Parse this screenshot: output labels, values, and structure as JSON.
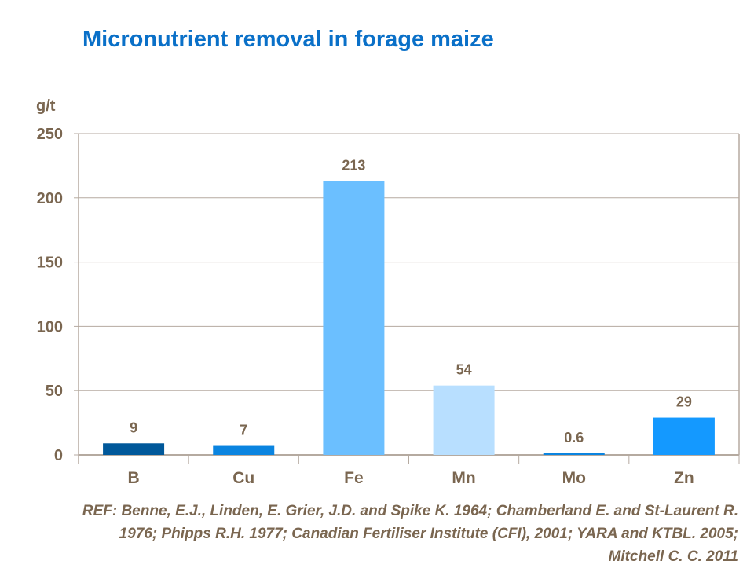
{
  "chart_data": {
    "type": "bar",
    "title": "Micronutrient removal in forage maize",
    "ylabel": "g/t",
    "xlabel": "",
    "categories": [
      "B",
      "Cu",
      "Fe",
      "Mn",
      "Mo",
      "Zn"
    ],
    "values": [
      9,
      7,
      213,
      54,
      0.6,
      29
    ],
    "data_labels": [
      "9",
      "7",
      "213",
      "54",
      "0.6",
      "29"
    ],
    "colors": [
      "#00589a",
      "#0a84e0",
      "#6bbfff",
      "#b8dfff",
      "#0a84e0",
      "#1499ff"
    ],
    "ylim": [
      0,
      250
    ],
    "yticks": [
      0,
      50,
      100,
      150,
      200,
      250
    ],
    "grid": true,
    "legend": "none"
  },
  "reference": "REF: Benne, E.J., Linden, E. Grier, J.D. and Spike K. 1964; Chamberland  E. and St-Laurent R. 1976; Phipps R.H. 1977; Canadian Fertiliser Institute (CFI), 2001; YARA and KTBL. 2005; Mitchell C. C. 2011"
}
